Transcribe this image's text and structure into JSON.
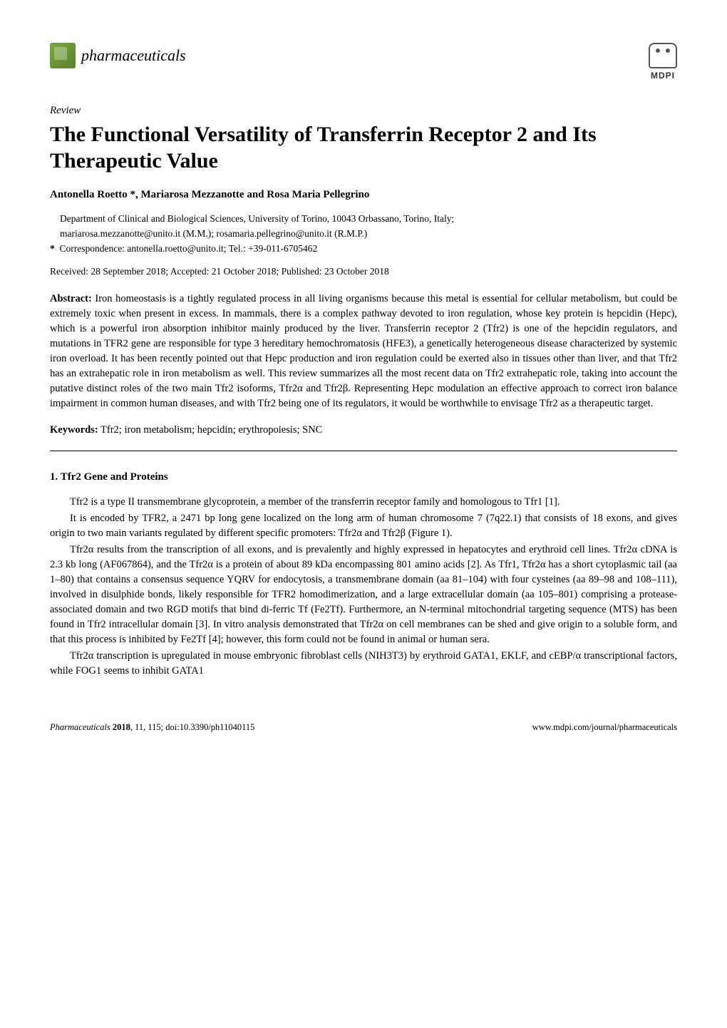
{
  "header": {
    "journal_name": "pharmaceuticals",
    "publisher": "MDPI"
  },
  "article": {
    "type": "Review",
    "title": "The Functional Versatility of Transferrin Receptor 2 and Its Therapeutic Value",
    "authors": "Antonella Roetto *, Mariarosa Mezzanotte and Rosa Maria Pellegrino",
    "affiliation": "Department of Clinical and Biological Sciences, University of Torino, 10043 Orbassano, Torino, Italy;",
    "emails": "mariarosa.mezzanotte@unito.it (M.M.); rosamaria.pellegrino@unito.it (R.M.P.)",
    "correspondence": "Correspondence: antonella.roetto@unito.it; Tel.: +39-011-6705462",
    "dates": "Received: 28 September 2018; Accepted: 21 October 2018; Published: 23 October 2018"
  },
  "abstract": {
    "label": "Abstract:",
    "text": " Iron homeostasis is a tightly regulated process in all living organisms because this metal is essential for cellular metabolism, but could be extremely toxic when present in excess. In mammals, there is a complex pathway devoted to iron regulation, whose key protein is hepcidin (Hepc), which is a powerful iron absorption inhibitor mainly produced by the liver. Transferrin receptor 2 (Tfr2) is one of the hepcidin regulators, and mutations in TFR2 gene are responsible for type 3 hereditary hemochromatosis (HFE3), a genetically heterogeneous disease characterized by systemic iron overload. It has been recently pointed out that Hepc production and iron regulation could be exerted also in tissues other than liver, and that Tfr2 has an extrahepatic role in iron metabolism as well. This review summarizes all the most recent data on Tfr2 extrahepatic role, taking into account the putative distinct roles of the two main Tfr2 isoforms, Tfr2α and Tfr2β. Representing Hepc modulation an effective approach to correct iron balance impairment in common human diseases, and with Tfr2 being one of its regulators, it would be worthwhile to envisage Tfr2 as a therapeutic target."
  },
  "keywords": {
    "label": "Keywords:",
    "text": " Tfr2; iron metabolism; hepcidin; erythropoiesis; SNC"
  },
  "section": {
    "heading": "1. Tfr2 Gene and Proteins",
    "paragraphs": [
      "Tfr2 is a type II transmembrane glycoprotein, a member of the transferrin receptor family and homologous to Tfr1 [1].",
      "It is encoded by TFR2, a 2471 bp long gene localized on the long arm of human chromosome 7 (7q22.1) that consists of 18 exons, and gives origin to two main variants regulated by different specific promoters: Tfr2α and Tfr2β (Figure 1).",
      "Tfr2α results from the transcription of all exons, and is prevalently and highly expressed in hepatocytes and erythroid cell lines. Tfr2α cDNA is 2.3 kb long (AF067864), and the Tfr2α is a protein of about 89 kDa encompassing 801 amino acids [2]. As Tfr1, Tfr2α has a short cytoplasmic tail (aa 1–80) that contains a consensus sequence YQRV for endocytosis, a transmembrane domain (aa 81–104) with four cysteines (aa 89–98 and 108–111), involved in disulphide bonds, likely responsible for TFR2 homodimerization, and a large extracellular domain (aa 105–801) comprising a protease-associated domain and two RGD motifs that bind di-ferric Tf (Fe2Tf). Furthermore, an N-terminal mitochondrial targeting sequence (MTS) has been found in Tfr2 intracellular domain [3]. In vitro analysis demonstrated that Tfr2α on cell membranes can be shed and give origin to a soluble form, and that this process is inhibited by Fe2Tf [4]; however, this form could not be found in animal or human sera.",
      "Tfr2α transcription is upregulated in mouse embryonic fibroblast cells (NIH3T3) by erythroid GATA1, EKLF, and cEBP/α transcriptional factors, while FOG1 seems to inhibit GATA1"
    ]
  },
  "footer": {
    "left_journal": "Pharmaceuticals",
    "left_year": " 2018",
    "left_rest": ", 11, 115; doi:10.3390/ph11040115",
    "right": "www.mdpi.com/journal/pharmaceuticals"
  },
  "colors": {
    "logo_green": "#7aa83f",
    "text": "#000000",
    "background": "#ffffff",
    "mdpi_gray": "#555555"
  }
}
